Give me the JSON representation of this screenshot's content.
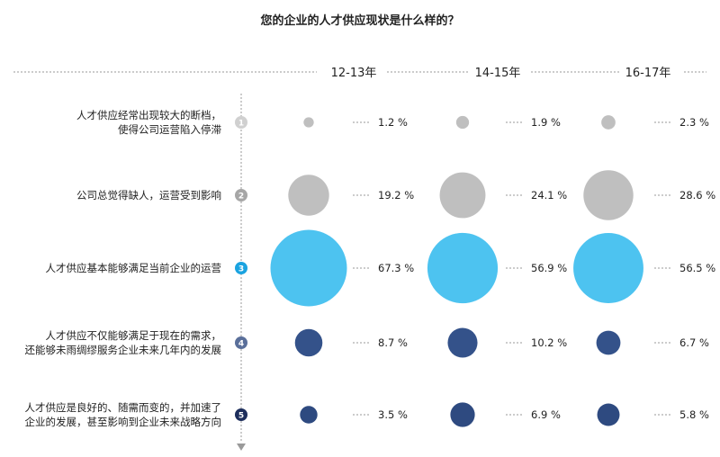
{
  "title": "您的企业的人才供应现状是什么样的？",
  "chart_data": {
    "type": "bubble",
    "title": "您的企业的人才供应现状是什么样的？",
    "columns": [
      "12-13年",
      "14-15年",
      "16-17年"
    ],
    "rows": [
      {
        "num": "1",
        "lines": [
          "人才供应经常出现较大的断档，",
          "使得公司运营陷入停滞"
        ],
        "values": [
          1.2,
          1.9,
          2.3
        ],
        "labels": [
          "1.2 %",
          "1.9 %",
          "2.3 %"
        ],
        "color": "#bfbfbf",
        "badge": "#d0d0d0"
      },
      {
        "num": "2",
        "lines": [
          "公司总觉得缺人，运营受到影响"
        ],
        "values": [
          19.2,
          24.1,
          28.6
        ],
        "labels": [
          "19.2 %",
          "24.1 %",
          "28.6 %"
        ],
        "color": "#bfbfbf",
        "badge": "#a6a6a6"
      },
      {
        "num": "3",
        "lines": [
          "人才供应基本能够满足当前企业的运营"
        ],
        "values": [
          67.3,
          56.9,
          56.5
        ],
        "labels": [
          "67.3 %",
          "56.9 %",
          "56.5 %"
        ],
        "color": "#4dc3f0",
        "badge": "#1aa3e0"
      },
      {
        "num": "4",
        "lines": [
          "人才供应不仅能够满足于现在的需求，",
          "还能够未雨绸缪服务企业未来几年内的发展"
        ],
        "values": [
          8.7,
          10.2,
          6.7
        ],
        "labels": [
          "8.7 %",
          "10.2 %",
          "6.7 %"
        ],
        "color": "#34528a",
        "badge": "#5a6f9a"
      },
      {
        "num": "5",
        "lines": [
          "人才供应是良好的、随需而变的，并加速了",
          "企业的发展，甚至影响到企业未来战略方向"
        ],
        "values": [
          3.5,
          6.9,
          5.8
        ],
        "labels": [
          "3.5 %",
          "6.9 %",
          "5.8 %"
        ],
        "color": "#2e4a80",
        "badge": "#1d2e5c"
      }
    ]
  }
}
